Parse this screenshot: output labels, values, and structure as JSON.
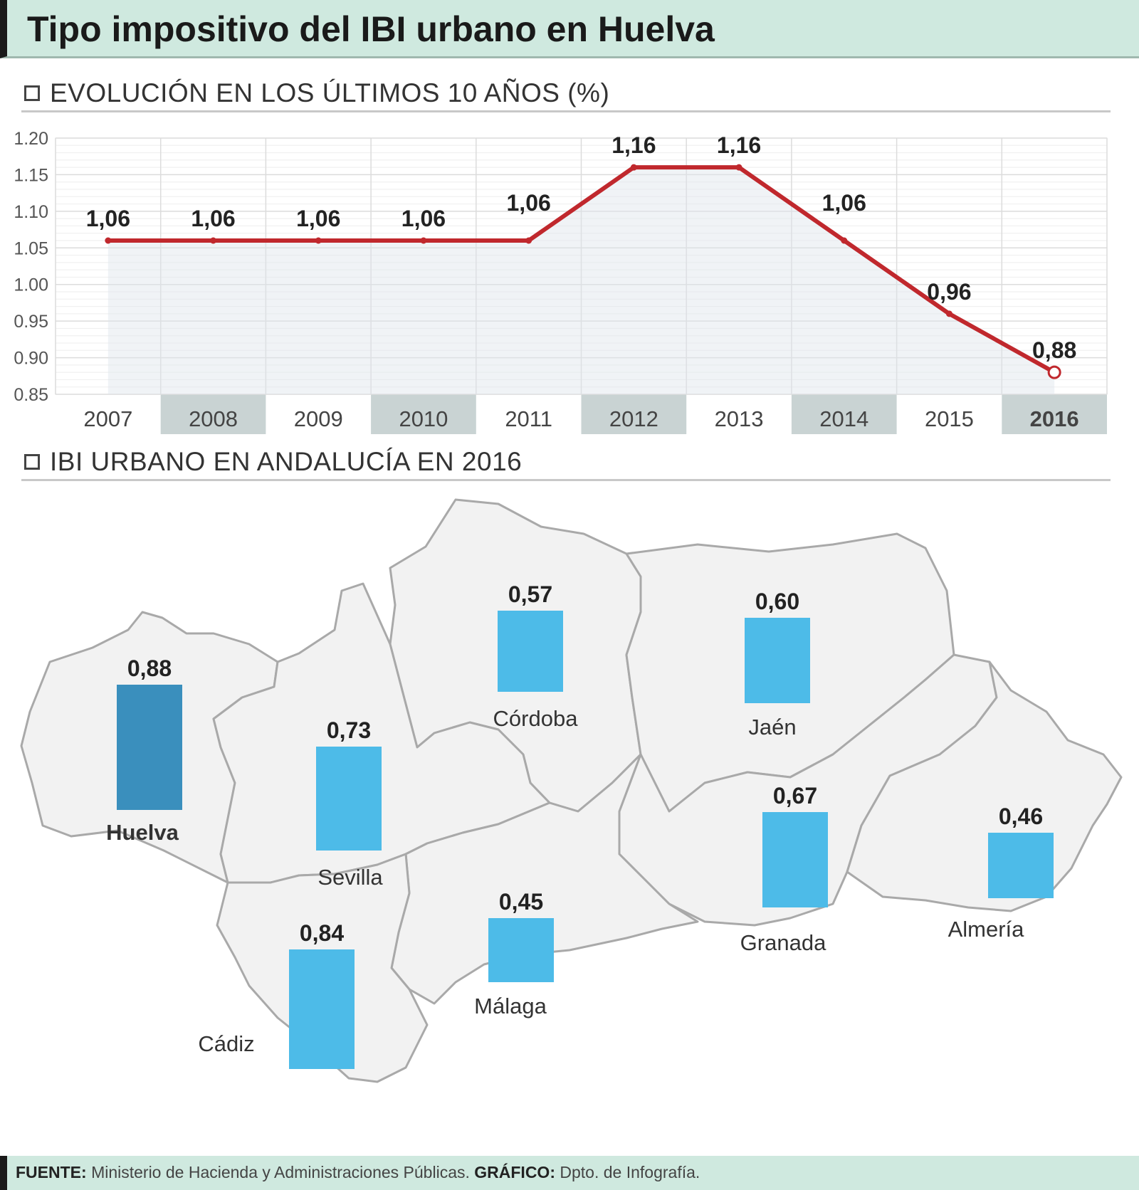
{
  "header": {
    "title": "Tipo impositivo del IBI urbano en Huelva"
  },
  "sections": {
    "evolution_title": "EVOLUCIÓN EN LOS ÚLTIMOS 10 AÑOS (%)",
    "map_title": "IBI URBANO EN ANDALUCÍA EN 2016"
  },
  "footer": {
    "source_label": "FUENTE:",
    "source_text": "Ministerio de Hacienda y Administraciones Públicas.",
    "graphic_label": "GRÁFICO:",
    "graphic_text": "Dpto. de Infografía."
  },
  "colors": {
    "line": "#c0282d",
    "bar": "#4dbbe8",
    "bar_highlight": "#3a8fbd",
    "title_band": "#cfe9df",
    "year_band": "#c9d3d3"
  },
  "chart_data": [
    {
      "type": "line",
      "title": "EVOLUCIÓN EN LOS ÚLTIMOS 10 AÑOS (%)",
      "x": [
        "2007",
        "2008",
        "2009",
        "2010",
        "2011",
        "2012",
        "2013",
        "2014",
        "2015",
        "2016"
      ],
      "series": [
        {
          "values": [
            1.06,
            1.06,
            1.06,
            1.06,
            1.06,
            1.16,
            1.16,
            1.06,
            0.96,
            0.88
          ]
        }
      ],
      "data_labels": [
        "1,06",
        "1,06",
        "1,06",
        "1,06",
        "1,06",
        "1,16",
        "1,16",
        "1,06",
        "0,96",
        "0,88"
      ],
      "y_ticks": [
        "1.20",
        "1.15",
        "1.10",
        "1.05",
        "1.00",
        "0.95",
        "0.90",
        "0.85"
      ],
      "ylim": [
        0.85,
        1.2
      ],
      "grid": true,
      "xlabel": "",
      "ylabel": ""
    },
    {
      "type": "bar",
      "title": "IBI URBANO EN ANDALUCÍA EN 2016",
      "categories": [
        "Huelva",
        "Sevilla",
        "Córdoba",
        "Jaén",
        "Cádiz",
        "Málaga",
        "Granada",
        "Almería"
      ],
      "values": [
        0.88,
        0.73,
        0.57,
        0.6,
        0.84,
        0.45,
        0.67,
        0.46
      ],
      "data_labels": [
        "0,88",
        "0,73",
        "0,57",
        "0,60",
        "0,84",
        "0,45",
        "0,67",
        "0,46"
      ],
      "highlight": "Huelva"
    }
  ]
}
